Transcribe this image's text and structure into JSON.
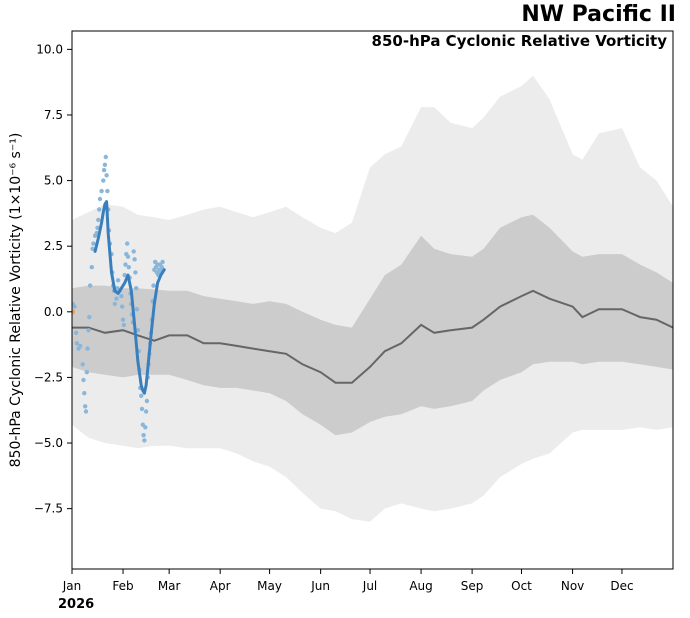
{
  "region_title": "NW Pacific II",
  "year_label": "2026",
  "chart_data": {
    "type": "line",
    "title": "850-hPa Cyclonic Relative Vorticity",
    "ylabel": "850-hPa Cyclonic Relative Vorticity (1×10⁻⁶ s⁻¹)",
    "xlabel": "",
    "xlim": [
      0,
      365
    ],
    "ylim": [
      -9.8,
      10.7
    ],
    "x_ticks": [
      {
        "label": "Jan",
        "day": 0
      },
      {
        "label": "Feb",
        "day": 31
      },
      {
        "label": "Mar",
        "day": 59
      },
      {
        "label": "Apr",
        "day": 90
      },
      {
        "label": "May",
        "day": 120
      },
      {
        "label": "Jun",
        "day": 151
      },
      {
        "label": "Jul",
        "day": 181
      },
      {
        "label": "Aug",
        "day": 212
      },
      {
        "label": "Sep",
        "day": 243
      },
      {
        "label": "Oct",
        "day": 273
      },
      {
        "label": "Nov",
        "day": 304
      },
      {
        "label": "Dec",
        "day": 334
      }
    ],
    "y_ticks": [
      {
        "label": "−7.5",
        "value": -7.5
      },
      {
        "label": "−5.0",
        "value": -5.0
      },
      {
        "label": "−2.5",
        "value": -2.5
      },
      {
        "label": "0.0",
        "value": 0.0
      },
      {
        "label": "2.5",
        "value": 2.5
      },
      {
        "label": "5.0",
        "value": 5.0
      },
      {
        "label": "7.5",
        "value": 7.5
      },
      {
        "label": "10.0",
        "value": 10.0
      }
    ],
    "colors": {
      "outer_band": "#ececec",
      "inner_band": "#cccccc",
      "climatology": "#666666",
      "forecast_line": "#3a7fbd",
      "forecast_points": "#8ab6d9",
      "observed_point": "#f0a050"
    },
    "climatology_bands": {
      "days": [
        0,
        10,
        20,
        31,
        40,
        50,
        59,
        70,
        80,
        90,
        100,
        110,
        120,
        130,
        140,
        151,
        160,
        170,
        181,
        190,
        200,
        212,
        220,
        230,
        243,
        250,
        260,
        273,
        280,
        290,
        304,
        310,
        320,
        334,
        345,
        355,
        365
      ],
      "outer_upper": [
        3.5,
        3.8,
        4.1,
        4.0,
        3.7,
        3.6,
        3.5,
        3.7,
        3.9,
        4.0,
        3.8,
        3.6,
        3.8,
        4.0,
        3.6,
        3.2,
        3.0,
        3.4,
        5.5,
        6.0,
        6.3,
        7.8,
        7.8,
        7.2,
        7.0,
        7.4,
        8.2,
        8.6,
        9.0,
        8.1,
        6.0,
        5.8,
        6.8,
        7.0,
        5.5,
        5.0,
        4.0
      ],
      "inner_upper": [
        0.9,
        1.0,
        1.0,
        0.9,
        0.9,
        0.85,
        0.8,
        0.8,
        0.6,
        0.5,
        0.4,
        0.3,
        0.4,
        0.3,
        0.0,
        -0.3,
        -0.5,
        -0.6,
        0.5,
        1.4,
        1.8,
        2.9,
        2.4,
        2.2,
        2.1,
        2.4,
        3.2,
        3.6,
        3.7,
        3.2,
        2.3,
        2.1,
        2.2,
        2.2,
        1.8,
        1.5,
        1.1
      ],
      "inner_lower": [
        -2.1,
        -2.3,
        -2.4,
        -2.5,
        -2.4,
        -2.4,
        -2.4,
        -2.6,
        -2.8,
        -2.9,
        -2.9,
        -3.0,
        -3.1,
        -3.4,
        -3.9,
        -4.3,
        -4.7,
        -4.6,
        -4.2,
        -4.0,
        -3.9,
        -3.6,
        -3.7,
        -3.6,
        -3.4,
        -3.0,
        -2.6,
        -2.3,
        -2.0,
        -1.9,
        -1.9,
        -2.0,
        -1.9,
        -1.9,
        -2.0,
        -2.1,
        -2.2
      ],
      "outer_lower": [
        -4.3,
        -4.8,
        -5.0,
        -5.1,
        -5.2,
        -5.1,
        -5.1,
        -5.2,
        -5.2,
        -5.2,
        -5.4,
        -5.7,
        -5.9,
        -6.3,
        -6.9,
        -7.5,
        -7.6,
        -7.9,
        -8.0,
        -7.5,
        -7.3,
        -7.5,
        -7.6,
        -7.5,
        -7.3,
        -7.0,
        -6.3,
        -5.8,
        -5.6,
        -5.4,
        -4.6,
        -4.5,
        -4.5,
        -4.5,
        -4.4,
        -4.5,
        -4.4
      ]
    },
    "climatology_mean": {
      "days": [
        0,
        10,
        20,
        31,
        40,
        50,
        59,
        70,
        80,
        90,
        100,
        110,
        120,
        130,
        140,
        151,
        160,
        170,
        181,
        190,
        200,
        212,
        220,
        230,
        243,
        250,
        260,
        273,
        280,
        290,
        304,
        310,
        320,
        334,
        345,
        355,
        365
      ],
      "values": [
        -0.6,
        -0.6,
        -0.8,
        -0.7,
        -0.9,
        -1.1,
        -0.9,
        -0.9,
        -1.2,
        -1.2,
        -1.3,
        -1.4,
        -1.5,
        -1.6,
        -2.0,
        -2.3,
        -2.7,
        -2.7,
        -2.1,
        -1.5,
        -1.2,
        -0.5,
        -0.8,
        -0.7,
        -0.6,
        -0.3,
        0.2,
        0.6,
        0.8,
        0.5,
        0.2,
        -0.2,
        0.1,
        0.1,
        -0.2,
        -0.3,
        -0.6
      ]
    },
    "forecast_mean": {
      "days": [
        14,
        16,
        18,
        19,
        20,
        21,
        22,
        24,
        26,
        28,
        30,
        32,
        34,
        36,
        38,
        40,
        42,
        43,
        44,
        45,
        46,
        48,
        50,
        52,
        54,
        56
      ],
      "values": [
        2.3,
        2.8,
        3.4,
        3.8,
        4.1,
        4.2,
        3.0,
        1.5,
        0.8,
        0.7,
        0.9,
        1.1,
        1.4,
        0.8,
        -0.5,
        -1.9,
        -2.8,
        -3.0,
        -3.1,
        -2.8,
        -2.2,
        -0.9,
        0.3,
        1.1,
        1.4,
        1.6
      ]
    },
    "forecast_members": [
      [
        0.5,
        0.3
      ],
      [
        1.5,
        0.2
      ],
      [
        2.5,
        -0.8
      ],
      [
        3.0,
        -1.2
      ],
      [
        4.0,
        -1.4
      ],
      [
        5.0,
        -1.3
      ],
      [
        6.5,
        -2.0
      ],
      [
        7.0,
        -2.6
      ],
      [
        7.5,
        -3.1
      ],
      [
        8.0,
        -3.6
      ],
      [
        8.5,
        -3.8
      ],
      [
        9.0,
        -2.3
      ],
      [
        9.5,
        -1.4
      ],
      [
        10.0,
        -0.7
      ],
      [
        10.5,
        -0.2
      ],
      [
        11.0,
        1.0
      ],
      [
        12.0,
        1.7
      ],
      [
        12.5,
        2.4
      ],
      [
        13.0,
        2.6
      ],
      [
        14.0,
        2.9
      ],
      [
        15.0,
        3.0
      ],
      [
        15.5,
        3.2
      ],
      [
        16.0,
        3.5
      ],
      [
        16.5,
        3.9
      ],
      [
        17.0,
        4.3
      ],
      [
        18.0,
        4.6
      ],
      [
        19.0,
        5.0
      ],
      [
        19.5,
        5.4
      ],
      [
        20.0,
        5.6
      ],
      [
        20.5,
        5.9
      ],
      [
        21.0,
        5.2
      ],
      [
        21.5,
        4.6
      ],
      [
        22.0,
        3.9
      ],
      [
        22.5,
        3.1
      ],
      [
        23.0,
        2.6
      ],
      [
        24.0,
        2.2
      ],
      [
        24.5,
        1.5
      ],
      [
        25.0,
        1.0
      ],
      [
        25.5,
        0.8
      ],
      [
        26.0,
        0.3
      ],
      [
        27.0,
        0.5
      ],
      [
        27.5,
        0.9
      ],
      [
        28.0,
        1.2
      ],
      [
        29.0,
        0.8
      ],
      [
        30.0,
        0.6
      ],
      [
        30.5,
        0.2
      ],
      [
        31.0,
        -0.3
      ],
      [
        31.5,
        -0.5
      ],
      [
        32.0,
        1.4
      ],
      [
        32.5,
        1.8
      ],
      [
        33.0,
        2.2
      ],
      [
        33.5,
        2.6
      ],
      [
        34.0,
        2.1
      ],
      [
        34.5,
        1.7
      ],
      [
        35.0,
        1.3
      ],
      [
        35.5,
        0.7
      ],
      [
        36.0,
        0.3
      ],
      [
        36.5,
        -0.1
      ],
      [
        37.0,
        -0.4
      ],
      [
        37.5,
        2.3
      ],
      [
        38.0,
        2.0
      ],
      [
        38.5,
        1.5
      ],
      [
        39.0,
        0.9
      ],
      [
        39.5,
        0.1
      ],
      [
        40.0,
        -0.7
      ],
      [
        40.5,
        -1.5
      ],
      [
        41.0,
        -2.2
      ],
      [
        41.5,
        -2.9
      ],
      [
        42.0,
        -3.2
      ],
      [
        42.5,
        -3.7
      ],
      [
        43.0,
        -4.3
      ],
      [
        43.5,
        -4.7
      ],
      [
        44.0,
        -4.9
      ],
      [
        44.5,
        -4.4
      ],
      [
        45.0,
        -3.8
      ],
      [
        45.5,
        -3.4
      ],
      [
        46.0,
        -2.5
      ],
      [
        46.5,
        -2.0
      ],
      [
        47.0,
        -1.6
      ],
      [
        47.5,
        -1.2
      ],
      [
        48.0,
        -0.8
      ],
      [
        48.5,
        -0.3
      ],
      [
        49.0,
        0.4
      ],
      [
        49.5,
        1.0
      ],
      [
        50.0,
        1.6
      ],
      [
        50.5,
        1.9
      ],
      [
        51.0,
        1.7
      ],
      [
        51.5,
        1.5
      ],
      [
        52.0,
        1.8
      ],
      [
        52.5,
        1.4
      ],
      [
        53.0,
        1.6
      ],
      [
        53.5,
        1.8
      ],
      [
        54.0,
        1.5
      ],
      [
        54.5,
        1.7
      ],
      [
        55.0,
        1.9
      ],
      [
        55.5,
        1.6
      ]
    ],
    "observed": [
      [
        0.3,
        0.0
      ]
    ]
  }
}
